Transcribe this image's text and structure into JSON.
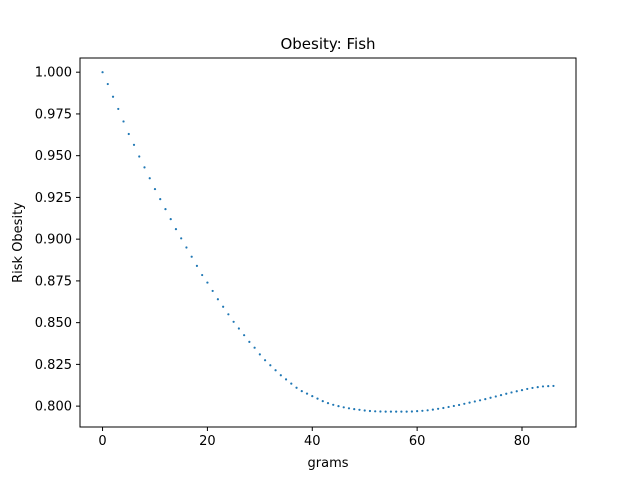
{
  "chart_data": {
    "type": "scatter",
    "title": "Obesity: Fish",
    "xlabel": "grams",
    "ylabel": "Risk Obesity",
    "xlim": [
      -4.3,
      90.3
    ],
    "ylim": [
      0.7875,
      1.0085
    ],
    "xticks": [
      0,
      20,
      40,
      60,
      80
    ],
    "xtick_labels": [
      "0",
      "20",
      "40",
      "60",
      "80"
    ],
    "yticks": [
      0.8,
      0.825,
      0.85,
      0.875,
      0.9,
      0.925,
      0.95,
      0.975,
      1.0
    ],
    "ytick_labels": [
      "0.800",
      "0.825",
      "0.850",
      "0.875",
      "0.900",
      "0.925",
      "0.950",
      "0.975",
      "1.000"
    ],
    "grid": false,
    "legend": "none",
    "marker_color": "#1f77b4",
    "series": [
      {
        "x": [
          0,
          1,
          2,
          3,
          4,
          5,
          6,
          7,
          8,
          9,
          10,
          11,
          12,
          13,
          14,
          15,
          16,
          17,
          18,
          19,
          20,
          21,
          22,
          23,
          24,
          25,
          26,
          27,
          28,
          29,
          30,
          31,
          32,
          33,
          34,
          35,
          36,
          37,
          38,
          39,
          40,
          41,
          42,
          43,
          44,
          45,
          46,
          47,
          48,
          49,
          50,
          51,
          52,
          53,
          54,
          55,
          56,
          57,
          58,
          59,
          60,
          61,
          62,
          63,
          64,
          65,
          66,
          67,
          68,
          69,
          70,
          71,
          72,
          73,
          74,
          75,
          76,
          77,
          78,
          79,
          80,
          81,
          82,
          83,
          84,
          85,
          86
        ],
        "y": [
          1.0,
          0.9929,
          0.9853,
          0.978,
          0.9705,
          0.963,
          0.9565,
          0.9495,
          0.943,
          0.9365,
          0.93,
          0.924,
          0.918,
          0.912,
          0.906,
          0.9005,
          0.895,
          0.8895,
          0.884,
          0.8785,
          0.874,
          0.869,
          0.864,
          0.8595,
          0.855,
          0.8505,
          0.8465,
          0.8425,
          0.8385,
          0.835,
          0.831,
          0.8275,
          0.8245,
          0.8215,
          0.8185,
          0.816,
          0.8135,
          0.811,
          0.809,
          0.8075,
          0.806,
          0.8045,
          0.803,
          0.8018,
          0.8008,
          0.8,
          0.7993,
          0.7987,
          0.7982,
          0.7978,
          0.7974,
          0.7971,
          0.7969,
          0.7968,
          0.7967,
          0.7967,
          0.7967,
          0.7967,
          0.7967,
          0.7968,
          0.797,
          0.7972,
          0.7975,
          0.7979,
          0.7984,
          0.7989,
          0.7995,
          0.8001,
          0.8007,
          0.8014,
          0.8021,
          0.8028,
          0.8035,
          0.8042,
          0.805,
          0.8058,
          0.8066,
          0.8074,
          0.8082,
          0.8089,
          0.8096,
          0.8103,
          0.8109,
          0.8114,
          0.8118,
          0.812,
          0.8121
        ]
      }
    ]
  }
}
